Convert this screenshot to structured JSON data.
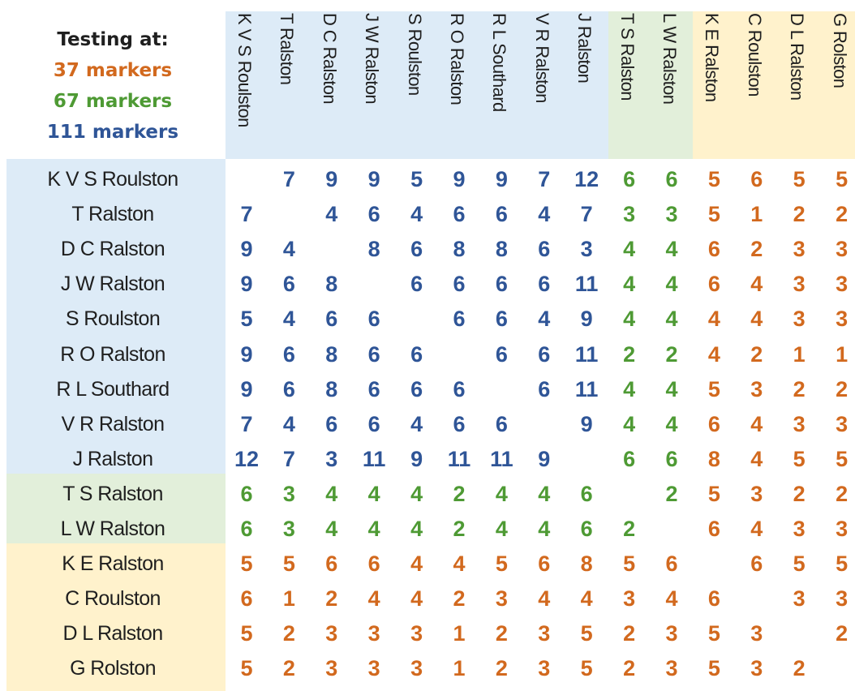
{
  "legend": {
    "title": "Testing at:",
    "tiers": [
      {
        "label": "37 markers",
        "color": "#d2691e"
      },
      {
        "label": "67 markers",
        "color": "#4e9a34"
      },
      {
        "label": "111 markers",
        "color": "#2f5597"
      }
    ]
  },
  "tier_backgrounds": {
    "111": "#ddebf7",
    "67": "#e2efda",
    "37": "#fff2cc"
  },
  "chart_data": {
    "type": "table",
    "title": "",
    "names": [
      "K V S Roulston",
      "T Ralston",
      "D C Ralston",
      "J W Ralston",
      "S Roulston",
      "R O Ralston",
      "R L Southard",
      "V R Ralston",
      "J Ralston",
      "T S Ralston",
      "L W Ralston",
      "K E Ralston",
      "C Roulston",
      "D L Ralston",
      "G Rolston"
    ],
    "tiers": [
      111,
      111,
      111,
      111,
      111,
      111,
      111,
      111,
      111,
      67,
      67,
      37,
      37,
      37,
      37
    ],
    "matrix": [
      [
        null,
        7,
        9,
        9,
        5,
        9,
        9,
        7,
        12,
        6,
        6,
        5,
        6,
        5,
        5
      ],
      [
        7,
        null,
        4,
        6,
        4,
        6,
        6,
        4,
        7,
        3,
        3,
        5,
        1,
        2,
        2
      ],
      [
        9,
        4,
        null,
        8,
        6,
        8,
        8,
        6,
        3,
        4,
        4,
        6,
        2,
        3,
        3
      ],
      [
        9,
        6,
        8,
        null,
        6,
        6,
        6,
        6,
        11,
        4,
        4,
        6,
        4,
        3,
        3
      ],
      [
        5,
        4,
        6,
        6,
        null,
        6,
        6,
        4,
        9,
        4,
        4,
        4,
        4,
        3,
        3
      ],
      [
        9,
        6,
        8,
        6,
        6,
        null,
        6,
        6,
        11,
        2,
        2,
        4,
        2,
        1,
        1
      ],
      [
        9,
        6,
        8,
        6,
        6,
        6,
        null,
        6,
        11,
        4,
        4,
        5,
        3,
        2,
        2
      ],
      [
        7,
        4,
        6,
        6,
        4,
        6,
        6,
        null,
        9,
        4,
        4,
        6,
        4,
        3,
        3
      ],
      [
        12,
        7,
        3,
        11,
        9,
        11,
        11,
        9,
        null,
        6,
        6,
        8,
        4,
        5,
        5
      ],
      [
        6,
        3,
        4,
        4,
        4,
        2,
        4,
        4,
        6,
        null,
        2,
        5,
        3,
        2,
        2
      ],
      [
        6,
        3,
        4,
        4,
        4,
        2,
        4,
        4,
        6,
        2,
        null,
        6,
        4,
        3,
        3
      ],
      [
        5,
        5,
        6,
        6,
        4,
        4,
        5,
        6,
        8,
        5,
        6,
        null,
        6,
        5,
        5
      ],
      [
        6,
        1,
        2,
        4,
        4,
        2,
        3,
        4,
        4,
        3,
        4,
        6,
        null,
        3,
        3
      ],
      [
        5,
        2,
        3,
        3,
        3,
        1,
        2,
        3,
        5,
        2,
        3,
        5,
        3,
        null,
        2
      ],
      [
        5,
        2,
        3,
        3,
        3,
        1,
        2,
        3,
        5,
        2,
        3,
        5,
        3,
        2,
        null
      ]
    ]
  }
}
